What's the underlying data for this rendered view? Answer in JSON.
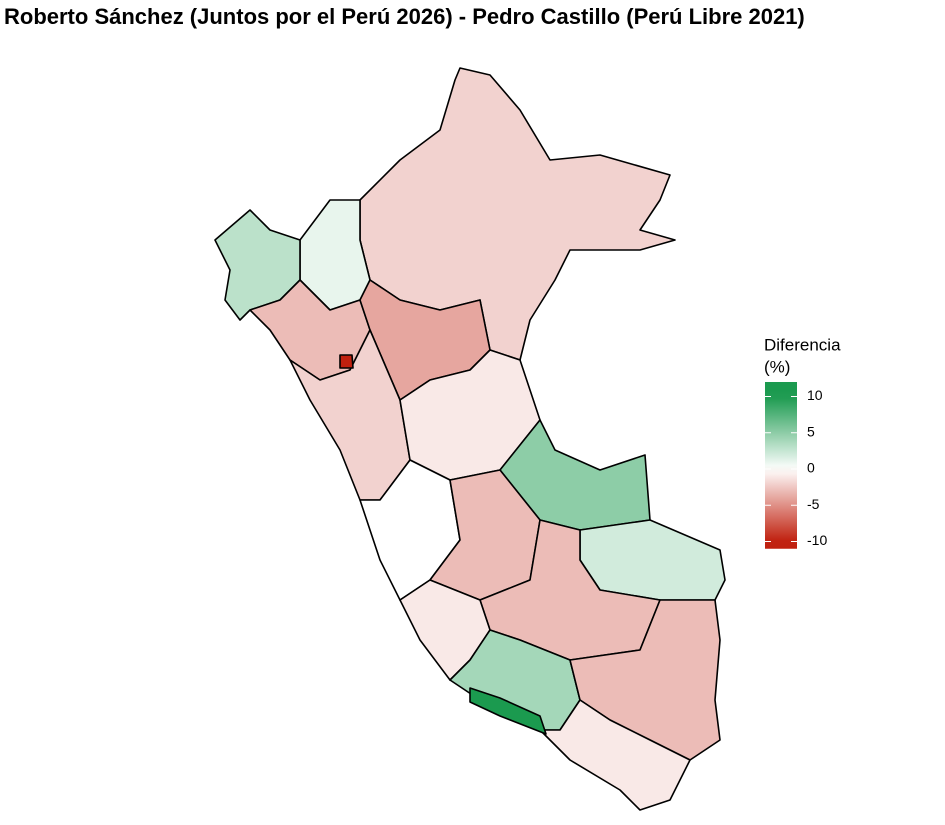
{
  "chart_data": {
    "type": "choropleth",
    "title": "Roberto Sánchez (Juntos por el Perú 2026) - Pedro Castillo (Perú Libre 2021)",
    "legend_title": [
      "Diferencia",
      "(%)"
    ],
    "values": [
      -2,
      1,
      3,
      -3,
      -4,
      -2,
      -1,
      5,
      0,
      -3,
      2,
      -3,
      -1,
      4,
      -3,
      -1,
      11,
      -11
    ],
    "clim": [
      -11,
      12
    ],
    "ticks": [
      10,
      5,
      0,
      -5,
      -10
    ],
    "low_color": "#c0200e",
    "mid_color": "#ffffff",
    "high_color": "#1b9a4f"
  }
}
